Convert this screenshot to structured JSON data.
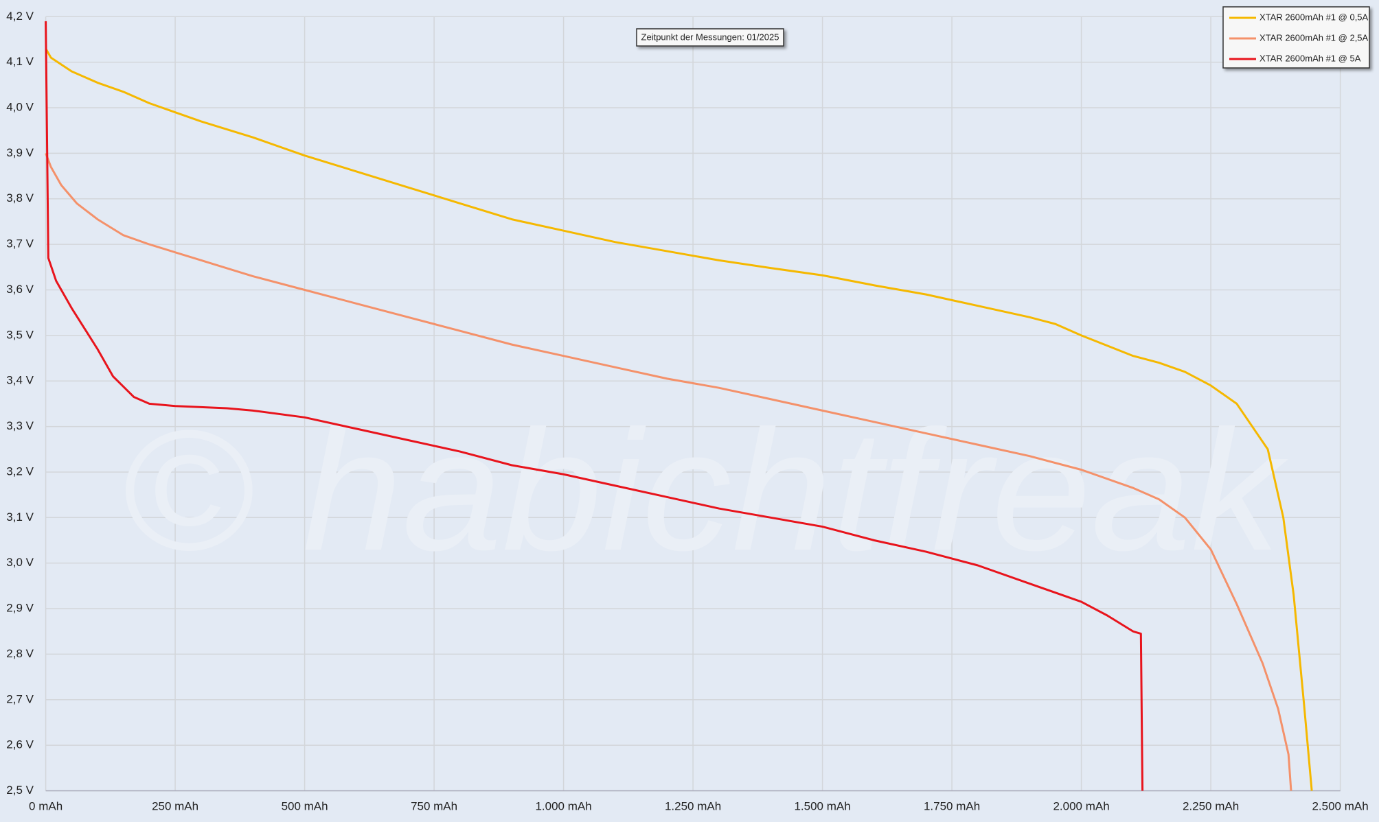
{
  "chart_data": {
    "type": "line",
    "annotation": "Zeitpunkt der Messungen: 01/2025",
    "watermark": "© habichtfreak",
    "grid": true,
    "legend_position": "top-right",
    "xlim": [
      0,
      2500
    ],
    "ylim": [
      2.5,
      4.2
    ],
    "xticks": [
      {
        "value": 0,
        "label": "0 mAh"
      },
      {
        "value": 250,
        "label": "250 mAh"
      },
      {
        "value": 500,
        "label": "500 mAh"
      },
      {
        "value": 750,
        "label": "750 mAh"
      },
      {
        "value": 1000,
        "label": "1.000 mAh"
      },
      {
        "value": 1250,
        "label": "1.250 mAh"
      },
      {
        "value": 1500,
        "label": "1.500 mAh"
      },
      {
        "value": 1750,
        "label": "1.750 mAh"
      },
      {
        "value": 2000,
        "label": "2.000 mAh"
      },
      {
        "value": 2250,
        "label": "2.250 mAh"
      },
      {
        "value": 2500,
        "label": "2.500 mAh"
      }
    ],
    "yticks": [
      {
        "value": 2.5,
        "label": "2,5 V"
      },
      {
        "value": 2.6,
        "label": "2,6 V"
      },
      {
        "value": 2.7,
        "label": "2,7 V"
      },
      {
        "value": 2.8,
        "label": "2,8 V"
      },
      {
        "value": 2.9,
        "label": "2,9 V"
      },
      {
        "value": 3.0,
        "label": "3,0 V"
      },
      {
        "value": 3.1,
        "label": "3,1 V"
      },
      {
        "value": 3.2,
        "label": "3,2 V"
      },
      {
        "value": 3.3,
        "label": "3,3 V"
      },
      {
        "value": 3.4,
        "label": "3,4 V"
      },
      {
        "value": 3.5,
        "label": "3,5 V"
      },
      {
        "value": 3.6,
        "label": "3,6 V"
      },
      {
        "value": 3.7,
        "label": "3,7 V"
      },
      {
        "value": 3.8,
        "label": "3,8 V"
      },
      {
        "value": 3.9,
        "label": "3,9 V"
      },
      {
        "value": 4.0,
        "label": "4,0 V"
      },
      {
        "value": 4.1,
        "label": "4,1 V"
      },
      {
        "value": 4.2,
        "label": "4,2 V"
      }
    ],
    "series": [
      {
        "name": "XTAR 2600mAh #1 @ 0,5A",
        "color": "#f5b800",
        "x": [
          0,
          10,
          50,
          100,
          150,
          200,
          250,
          300,
          400,
          500,
          600,
          700,
          800,
          900,
          1000,
          1100,
          1200,
          1300,
          1400,
          1500,
          1600,
          1700,
          1800,
          1900,
          1950,
          2000,
          2100,
          2150,
          2200,
          2250,
          2300,
          2330,
          2360,
          2390,
          2410,
          2430,
          2445
        ],
        "values": [
          4.13,
          4.11,
          4.08,
          4.055,
          4.035,
          4.01,
          3.99,
          3.97,
          3.935,
          3.895,
          3.86,
          3.825,
          3.79,
          3.755,
          3.73,
          3.705,
          3.685,
          3.665,
          3.648,
          3.632,
          3.61,
          3.59,
          3.565,
          3.54,
          3.525,
          3.5,
          3.455,
          3.44,
          3.42,
          3.39,
          3.35,
          3.3,
          3.25,
          3.1,
          2.93,
          2.69,
          2.5
        ]
      },
      {
        "name": "XTAR 2600mAh #1 @ 2,5A",
        "color": "#f4916a",
        "x": [
          0,
          10,
          30,
          60,
          100,
          150,
          200,
          300,
          400,
          500,
          600,
          700,
          750,
          800,
          900,
          1000,
          1100,
          1200,
          1300,
          1400,
          1500,
          1600,
          1700,
          1800,
          1900,
          2000,
          2100,
          2150,
          2200,
          2250,
          2300,
          2350,
          2380,
          2400,
          2405
        ],
        "values": [
          3.9,
          3.87,
          3.83,
          3.79,
          3.755,
          3.72,
          3.7,
          3.665,
          3.63,
          3.6,
          3.57,
          3.54,
          3.525,
          3.51,
          3.48,
          3.455,
          3.43,
          3.405,
          3.385,
          3.36,
          3.335,
          3.31,
          3.285,
          3.26,
          3.235,
          3.205,
          3.165,
          3.14,
          3.1,
          3.03,
          2.91,
          2.78,
          2.68,
          2.58,
          2.5
        ]
      },
      {
        "name": "XTAR 2600mAh #1 @ 5A",
        "color": "#e8141c",
        "x": [
          0,
          5,
          20,
          50,
          100,
          130,
          170,
          200,
          250,
          350,
          400,
          500,
          600,
          700,
          800,
          900,
          1000,
          1100,
          1200,
          1300,
          1400,
          1500,
          1600,
          1700,
          1800,
          1900,
          2000,
          2050,
          2100,
          2115,
          2118
        ],
        "values": [
          4.19,
          3.67,
          3.62,
          3.56,
          3.47,
          3.41,
          3.365,
          3.35,
          3.345,
          3.34,
          3.335,
          3.32,
          3.295,
          3.27,
          3.245,
          3.215,
          3.195,
          3.17,
          3.145,
          3.12,
          3.1,
          3.08,
          3.05,
          3.025,
          2.995,
          2.955,
          2.915,
          2.885,
          2.85,
          2.845,
          2.5
        ]
      }
    ]
  }
}
